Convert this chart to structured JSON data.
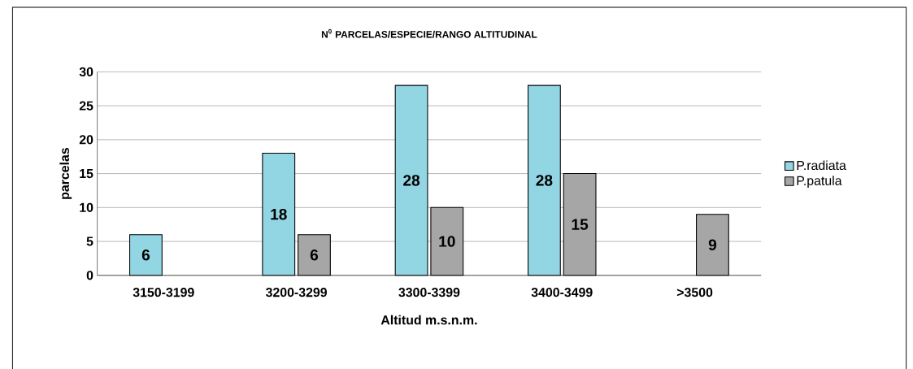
{
  "chart_data": {
    "type": "bar",
    "title": "N$^{0}$ PARCELAS/ESPECIE/RANGO ALTITUDINAL",
    "xlabel": "Altitud m.s.n.m.",
    "ylabel": "parcelas",
    "categories": [
      "3150-3199",
      "3200-3299",
      "3300-3399",
      "3400-3499",
      ">3500"
    ],
    "series": [
      {
        "name": "P.radiata",
        "color": "#92d5e3",
        "values": [
          6,
          18,
          28,
          28,
          null
        ]
      },
      {
        "name": "P.patula",
        "color": "#a6a6a6",
        "values": [
          null,
          6,
          10,
          15,
          9
        ]
      }
    ],
    "ylim": [
      0,
      30
    ],
    "yticks": [
      0,
      5,
      10,
      15,
      20,
      25,
      30
    ],
    "grid": "y",
    "legend": "right",
    "data_labels": true
  }
}
